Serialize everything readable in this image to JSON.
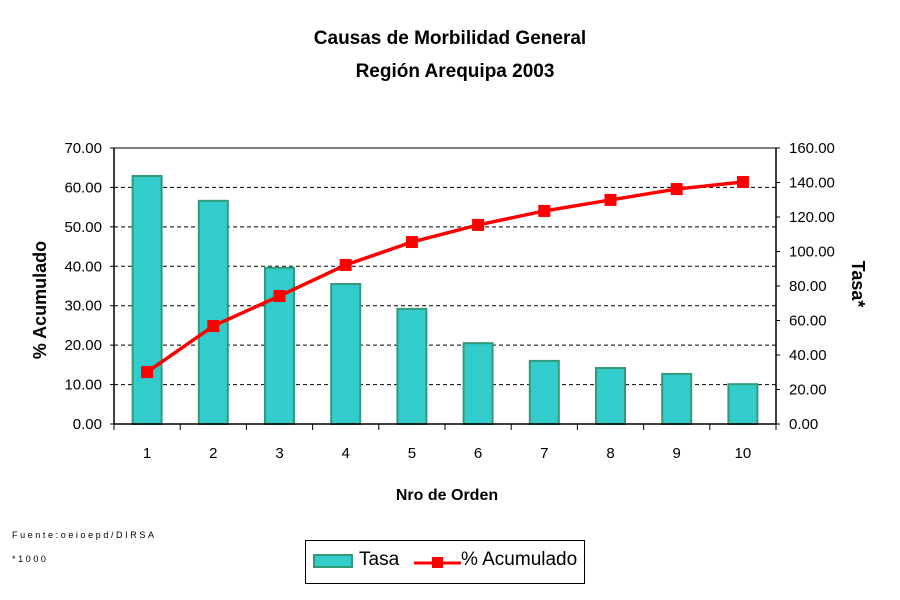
{
  "chart_data": {
    "type": "bar+line",
    "title": "Causas de Morbilidad General",
    "subtitle": "Región Arequipa 2003",
    "xlabel": "Nro de Orden",
    "ylabel_left": "% Acumulado",
    "ylabel_right": "Tasa*",
    "categories": [
      "1",
      "2",
      "3",
      "4",
      "5",
      "6",
      "7",
      "8",
      "9",
      "10"
    ],
    "ylim_left": [
      0,
      70
    ],
    "ylim_right": [
      0,
      160
    ],
    "yticks_left": [
      "0.00",
      "10.00",
      "20.00",
      "30.00",
      "40.00",
      "50.00",
      "60.00",
      "70.00"
    ],
    "yticks_right": [
      "0.00",
      "20.00",
      "40.00",
      "60.00",
      "80.00",
      "100.00",
      "120.00",
      "140.00",
      "160.00"
    ],
    "grid": "dashed horizontal",
    "legend_position": "bottom",
    "series": [
      {
        "name": "Tasa",
        "type": "bar",
        "axis": "left",
        "color": "#33CCCC",
        "edge_color": "#339977",
        "values": [
          62.9,
          56.6,
          39.6,
          35.5,
          29.2,
          20.5,
          16.0,
          14.2,
          12.7,
          10.1
        ]
      },
      {
        "name": "% Acumulado",
        "type": "line",
        "axis": "right",
        "color": "#FF0000",
        "values": [
          30.1,
          56.8,
          74.2,
          92.2,
          105.5,
          115.4,
          123.5,
          129.9,
          136.2,
          140.3
        ]
      }
    ]
  },
  "footnotes": {
    "source": "Fuente:oeioepd/DIRSA",
    "note": "*1000"
  },
  "legend": {
    "bar_label": "Tasa",
    "line_label": "% Acumulado"
  }
}
